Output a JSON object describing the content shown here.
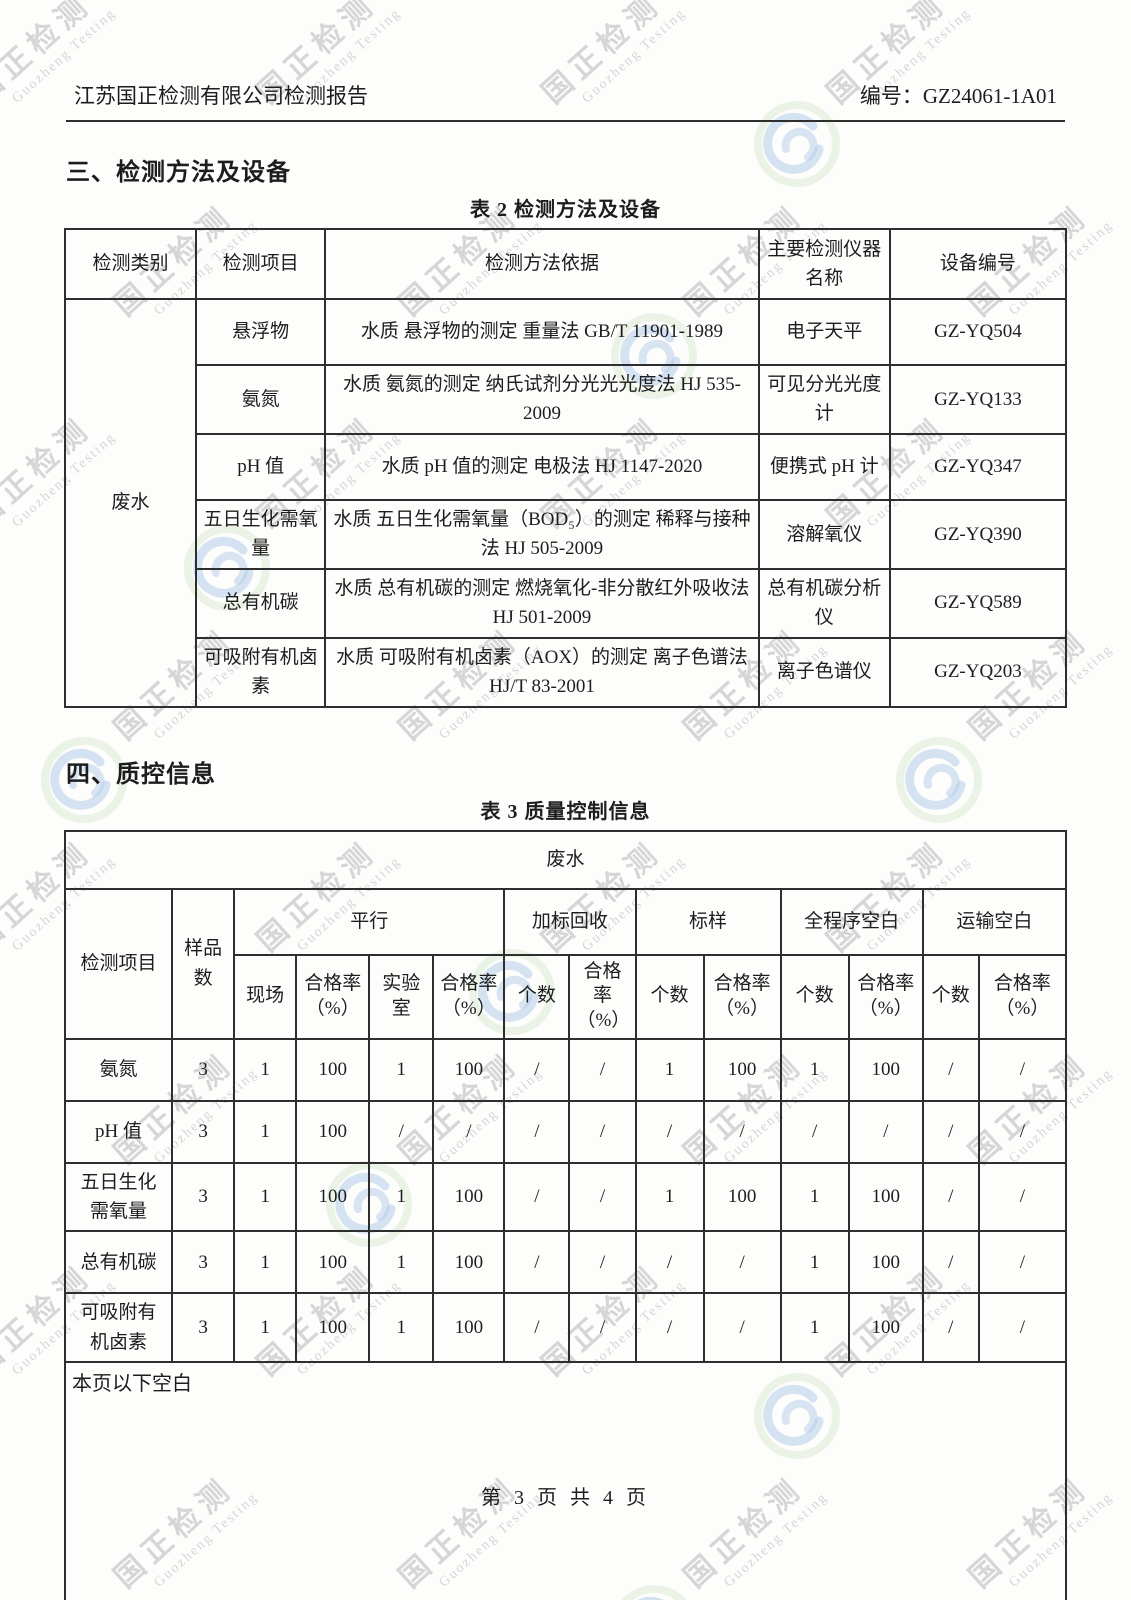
{
  "header": {
    "title": "江苏国正检测有限公司检测报告",
    "report_no_label": "编号：",
    "report_no": "GZ24061-1A01"
  },
  "section3": {
    "heading": "三、检测方法及设备",
    "table_title": "表 2   检测方法及设备"
  },
  "table2": {
    "headers": [
      "检测类别",
      "检测项目",
      "检测方法依据",
      "主要检测仪器名称",
      "设备编号"
    ],
    "category": "废水",
    "rows": [
      {
        "item": "悬浮物",
        "method": "水质  悬浮物的测定  重量法 GB/T 11901-1989",
        "instrument": "电子天平",
        "equip_no": "GZ-YQ504"
      },
      {
        "item": "氨氮",
        "method": "水质  氨氮的测定  纳氏试剂分光光光度法 HJ 535-2009",
        "instrument": "可见分光光度计",
        "equip_no": "GZ-YQ133"
      },
      {
        "item": "pH 值",
        "method": "水质  pH 值的测定  电极法 HJ 1147-2020",
        "instrument": "便携式 pH 计",
        "equip_no": "GZ-YQ347"
      },
      {
        "item": "五日生化需氧量",
        "method": "水质  五日生化需氧量（BOD₅）的测定  稀释与接种法  HJ 505-2009",
        "instrument": "溶解氧仪",
        "equip_no": "GZ-YQ390"
      },
      {
        "item": "总有机碳",
        "method": "水质  总有机碳的测定  燃烧氧化-非分散红外吸收法  HJ 501-2009",
        "instrument": "总有机碳分析仪",
        "equip_no": "GZ-YQ589"
      },
      {
        "item": "可吸附有机卤素",
        "method": "水质  可吸附有机卤素（AOX）的测定  离子色谱法 HJ/T 83-2001",
        "instrument": "离子色谱仪",
        "equip_no": "GZ-YQ203"
      }
    ]
  },
  "section4": {
    "heading": "四、质控信息",
    "table_title": "表 3   质量控制信息"
  },
  "table3": {
    "category": "废水",
    "col1": "检测项目",
    "col2": "样品数",
    "groups": [
      {
        "label": "平行",
        "subs": [
          "现场",
          "合格率（%）",
          "实验室",
          "合格率（%）"
        ]
      },
      {
        "label": "加标回收",
        "subs": [
          "个数",
          "合格率（%）"
        ]
      },
      {
        "label": "标样",
        "subs": [
          "个数",
          "合格率（%）"
        ]
      },
      {
        "label": "全程序空白",
        "subs": [
          "个数",
          "合格率（%）"
        ]
      },
      {
        "label": "运输空白",
        "subs": [
          "个数",
          "合格率（%）"
        ]
      }
    ],
    "rows": [
      {
        "item": "氨氮",
        "values": [
          "3",
          "1",
          "100",
          "1",
          "100",
          "/",
          "/",
          "1",
          "100",
          "1",
          "100",
          "/",
          "/"
        ]
      },
      {
        "item": "pH 值",
        "values": [
          "3",
          "1",
          "100",
          "/",
          "/",
          "/",
          "/",
          "/",
          "/",
          "/",
          "/",
          "/",
          "/"
        ]
      },
      {
        "item": "五日生化需氧量",
        "values": [
          "3",
          "1",
          "100",
          "1",
          "100",
          "/",
          "/",
          "1",
          "100",
          "1",
          "100",
          "/",
          "/"
        ]
      },
      {
        "item": "总有机碳",
        "values": [
          "3",
          "1",
          "100",
          "1",
          "100",
          "/",
          "/",
          "/",
          "/",
          "1",
          "100",
          "/",
          "/"
        ]
      },
      {
        "item": "可吸附有机卤素",
        "values": [
          "3",
          "1",
          "100",
          "1",
          "100",
          "/",
          "/",
          "/",
          "/",
          "1",
          "100",
          "/",
          "/"
        ]
      }
    ],
    "footer_note": "本页以下空白"
  },
  "page_footer": "第 3 页 共 4 页",
  "watermark": {
    "text": "国正检测",
    "subtext": "Guozheng Testing"
  }
}
